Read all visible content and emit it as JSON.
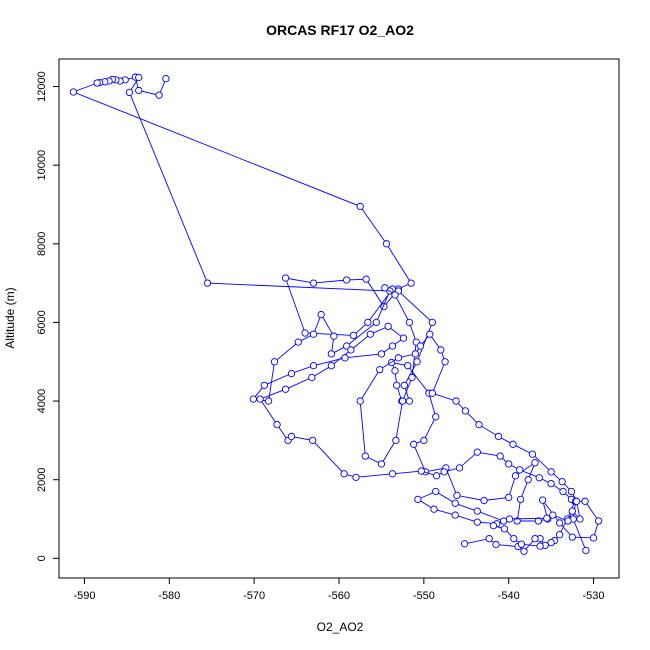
{
  "chart_data": {
    "type": "line",
    "title": "ORCAS RF17 O2_AO2",
    "xlabel": "O2_AO2",
    "ylabel": "Altitude (m)",
    "xlim": [
      -593,
      -527
    ],
    "ylim": [
      -500,
      12700
    ],
    "xticks": [
      -590,
      -580,
      -570,
      -560,
      -550,
      -540,
      -530
    ],
    "yticks": [
      0,
      2000,
      4000,
      6000,
      8000,
      10000,
      12000
    ],
    "grid": false,
    "legend": "none",
    "series_color": "#0000ff",
    "marker": "open-circle",
    "series": [
      {
        "x": [
          -580.4,
          -581.2,
          -583.6,
          -584.0,
          -585.2,
          -585.8,
          -586.3,
          -586.7,
          -587.1,
          -587.6,
          -588.2,
          -588.5,
          -591.3,
          -557.5,
          -554.4,
          -551.5,
          -553.0,
          -554.7,
          -556.8,
          -559.1,
          -563.0,
          -566.3,
          -564.0,
          -558.3,
          -556.6,
          -553.7,
          -553.0,
          -549.0,
          -550.8,
          -552.3,
          -551.7,
          -552.6,
          -553.2,
          -553.4,
          -553.8,
          -551.9,
          -549.4,
          -548.6,
          -550.0,
          -551.2,
          -549.8,
          -547.4,
          -546.1,
          -542.9,
          -540.0,
          -539.2,
          -536.9,
          -537.7,
          -538.6,
          -539.0,
          -536.5,
          -535.4,
          -536.0,
          -534.0,
          -532.5,
          -530.0,
          -529.4,
          -531.0,
          -532.2,
          -533.1,
          -534.0,
          -534.6,
          -535.0,
          -535.7,
          -536.3,
          -536.9,
          -538.2,
          -538.9,
          -541.5,
          -542.3,
          -545.2
        ],
        "y": [
          12200,
          11780,
          11900,
          12240,
          12170,
          12140,
          12170,
          12180,
          12140,
          12120,
          12100,
          12090,
          11860,
          8950,
          8000,
          7000,
          6850,
          6400,
          7100,
          7080,
          7000,
          7130,
          5730,
          5670,
          6000,
          6850,
          6800,
          6000,
          5000,
          4400,
          4000,
          4000,
          4400,
          4770,
          4980,
          4900,
          4200,
          3600,
          3000,
          2900,
          2200,
          2300,
          1600,
          1470,
          1550,
          2100,
          2430,
          2000,
          1500,
          950,
          950,
          1000,
          1480,
          900,
          540,
          520,
          950,
          1450,
          1450,
          1000,
          600,
          450,
          400,
          330,
          500,
          500,
          180,
          300,
          350,
          500,
          370
        ]
      },
      {
        "x": [
          -583.6,
          -584.7,
          -575.5,
          -554.0,
          -555.6,
          -559.1,
          -560.9,
          -560.6,
          -562.1,
          -563.0,
          -564.8,
          -567.6,
          -568.3,
          -570.1,
          -568.8,
          -565.6,
          -563.0,
          -559.3,
          -555.0,
          -553.7,
          -552.4,
          -554.2,
          -556.3,
          -558.6,
          -560.9,
          -563.2,
          -566.3,
          -569.3,
          -567.3,
          -566.0,
          -565.6,
          -563.1,
          -559.4,
          -558.0,
          -553.7,
          -550.3,
          -548.5,
          -547.6,
          -545.8,
          -543.7,
          -541.0,
          -540.0,
          -538.7,
          -536.4,
          -535.0,
          -533.6,
          -532.6,
          -532.1,
          -532.4,
          -530.9
        ],
        "y": [
          12230,
          11850,
          7000,
          6800,
          6000,
          5400,
          5200,
          5650,
          6200,
          5700,
          5500,
          5000,
          4000,
          4050,
          4400,
          4700,
          4900,
          5100,
          5200,
          5400,
          5600,
          5900,
          5700,
          5300,
          4900,
          4600,
          4300,
          4050,
          3400,
          3000,
          3100,
          3000,
          2150,
          2060,
          2150,
          2220,
          2100,
          2200,
          2300,
          2700,
          2600,
          2400,
          2250,
          2050,
          1900,
          1700,
          1500,
          1450,
          1000,
          200
        ]
      },
      {
        "x": [
          -554.6,
          -553.4,
          -551.7,
          -550.9,
          -551.4,
          -552.5,
          -553.3,
          -555.0,
          -556.9,
          -557.5,
          -555.2,
          -553.0,
          -551.0,
          -550.4,
          -549.3,
          -548.0,
          -547.5,
          -549.0,
          -546.2,
          -545.1,
          -543.5,
          -541.2,
          -539.5,
          -537.2,
          -535.0,
          -533.7,
          -532.6,
          -532.0,
          -531.6,
          -532.5,
          -533.0,
          -534.8,
          -535.5,
          -539.9,
          -541.4,
          -543.7,
          -546.3,
          -548.8,
          -550.7,
          -548.6,
          -546.3,
          -543.7,
          -540.6,
          -541.8,
          -540.5,
          -539.4,
          -538.5,
          -536.3
        ],
        "y": [
          6880,
          6700,
          6000,
          5500,
          4600,
          4000,
          3000,
          2400,
          2600,
          4000,
          4800,
          5100,
          5200,
          5400,
          5700,
          5300,
          5000,
          4200,
          4000,
          3750,
          3400,
          3100,
          2900,
          2650,
          2200,
          1950,
          1700,
          1450,
          1000,
          1200,
          950,
          1100,
          1020,
          1000,
          880,
          920,
          1100,
          1250,
          1500,
          1700,
          1400,
          1200,
          950,
          830,
          750,
          500,
          360,
          310
        ]
      }
    ]
  }
}
